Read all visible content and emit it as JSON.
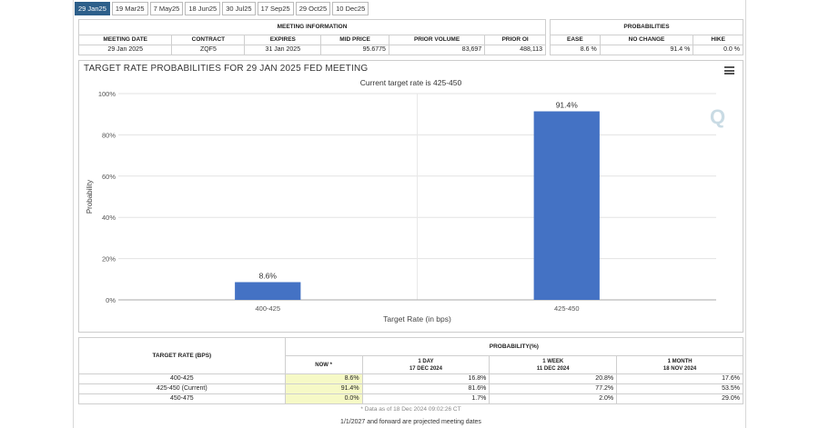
{
  "tabs": [
    "29 Jan25",
    "19 Mar25",
    "7 May25",
    "18 Jun25",
    "30 Jul25",
    "17 Sep25",
    "29 Oct25",
    "10 Dec25"
  ],
  "meeting_info": {
    "caption": "MEETING INFORMATION",
    "headers": [
      "MEETING DATE",
      "CONTRACT",
      "EXPIRES",
      "MID PRICE",
      "PRIOR VOLUME",
      "PRIOR OI"
    ],
    "row": [
      "29 Jan 2025",
      "ZQF5",
      "31 Jan 2025",
      "95.6775",
      "83,697",
      "488,113"
    ]
  },
  "probabilities": {
    "caption": "PROBABILITIES",
    "headers": [
      "EASE",
      "NO CHANGE",
      "HIKE"
    ],
    "row": [
      "8.6 %",
      "91.4 %",
      "0.0 %"
    ]
  },
  "chart": {
    "title": "TARGET RATE PROBABILITIES FOR 29 JAN 2025 FED MEETING",
    "subtitle": "Current target rate is 425-450",
    "watermark": "Q"
  },
  "chart_data": {
    "type": "bar",
    "categories": [
      "400-425",
      "425-450"
    ],
    "values": [
      8.6,
      91.4
    ],
    "value_labels": [
      "8.6%",
      "91.4%"
    ],
    "title": "TARGET RATE PROBABILITIES FOR 29 JAN 2025 FED MEETING",
    "subtitle": "Current target rate is 425-450",
    "xlabel": "Target Rate (in bps)",
    "ylabel": "Probability",
    "ylim": [
      0,
      100
    ],
    "yticks": [
      "0%",
      "20%",
      "40%",
      "60%",
      "80%",
      "100%"
    ],
    "grid": true,
    "bar_color": "#4472c4"
  },
  "prob_table": {
    "rate_header": "TARGET RATE (BPS)",
    "group_header": "PROBABILITY(%)",
    "columns": [
      {
        "label": "NOW *",
        "date": ""
      },
      {
        "label": "1 DAY",
        "date": "17 DEC 2024"
      },
      {
        "label": "1 WEEK",
        "date": "11 DEC 2024"
      },
      {
        "label": "1 MONTH",
        "date": "18 NOV 2024"
      }
    ],
    "rows": [
      {
        "rate": "400-425",
        "values": [
          "8.6%",
          "16.8%",
          "20.8%",
          "17.6%"
        ]
      },
      {
        "rate": "425-450 (Current)",
        "values": [
          "91.4%",
          "81.6%",
          "77.2%",
          "53.5%"
        ]
      },
      {
        "rate": "450-475",
        "values": [
          "0.0%",
          "1.7%",
          "2.0%",
          "29.0%"
        ]
      }
    ],
    "footnote": "* Data as of 18 Dec 2024 09:02:26 CT"
  },
  "footer": "1/1/2027 and forward are projected meeting dates",
  "colors": {
    "active_tab": "#2d5f8a",
    "now_highlight": "#f6f9c6",
    "bar": "#4472c4"
  }
}
